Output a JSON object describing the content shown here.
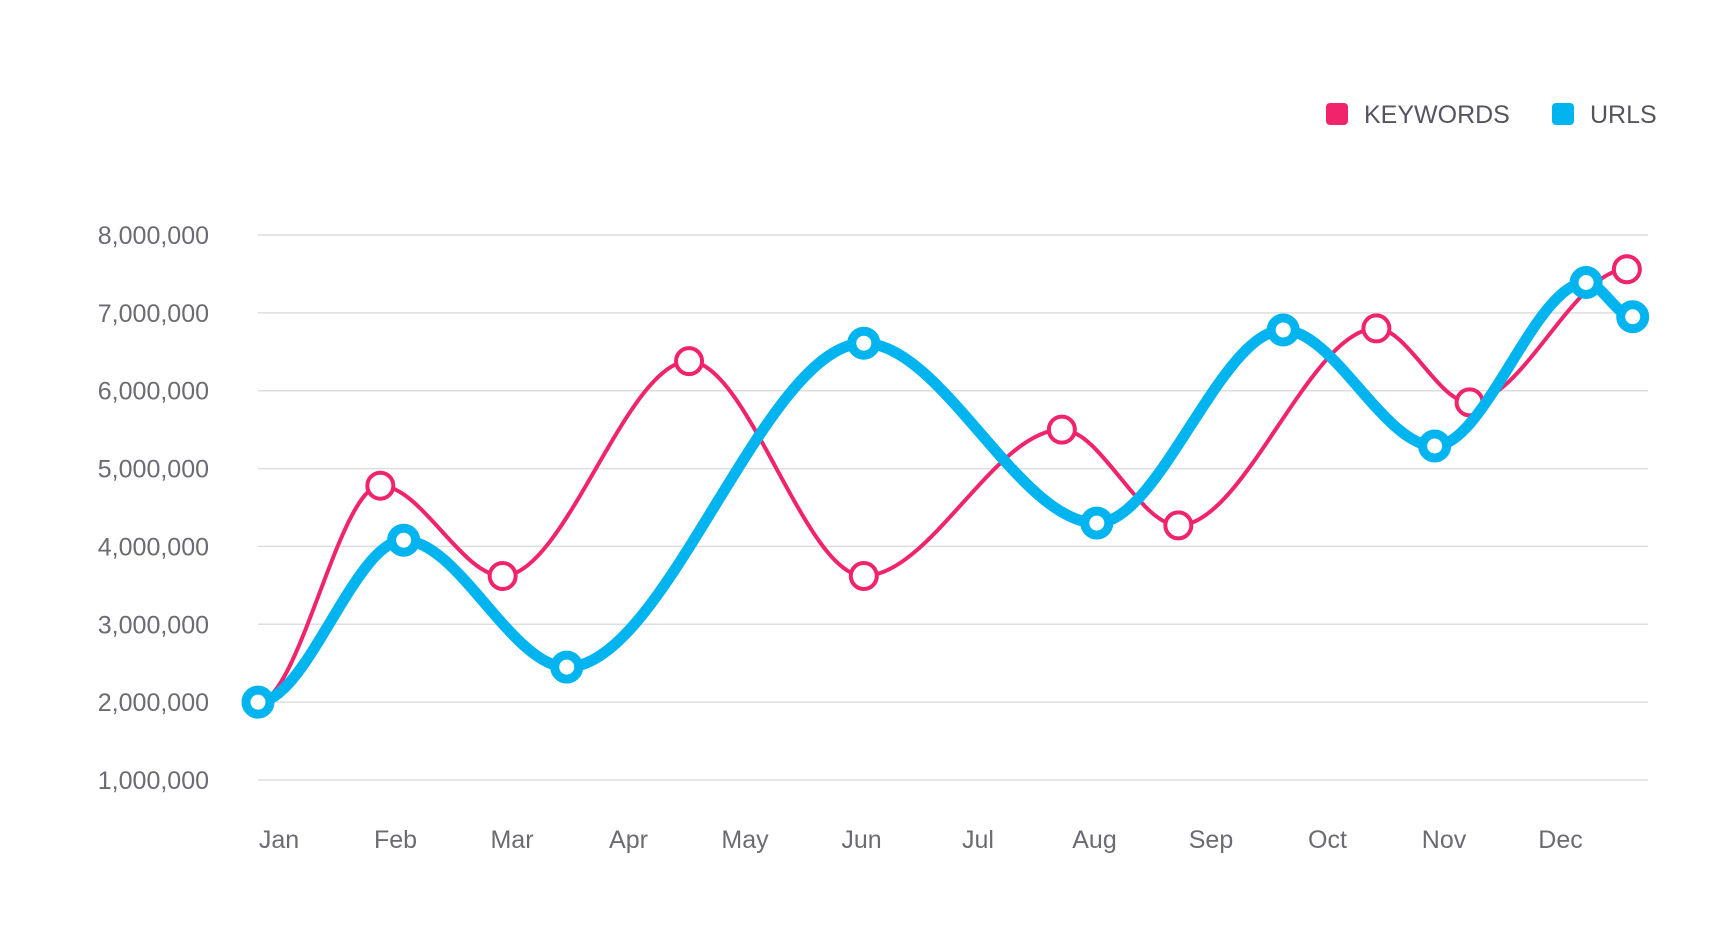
{
  "chart_data": {
    "type": "line",
    "categories": [
      "Jan",
      "Feb",
      "Mar",
      "Apr",
      "May",
      "Jun",
      "Jul",
      "Aug",
      "Sep",
      "Oct",
      "Nov",
      "Dec"
    ],
    "y_ticks": [
      "1,000,000",
      "2,000,000",
      "3,000,000",
      "4,000,000",
      "5,000,000",
      "6,000,000",
      "7,000,000",
      "8,000,000"
    ],
    "ylim": [
      1000000,
      8000000
    ],
    "grid": true,
    "legend_position": "top-right",
    "series": [
      {
        "name": "KEYWORDS",
        "color": "#f0236b",
        "marker": "hollow-circle",
        "x": [
          0,
          1.05,
          2.1,
          3.7,
          5.2,
          6.9,
          7.9,
          9.6,
          10.4,
          11.75
        ],
        "values": [
          2000000,
          4780000,
          3620000,
          6380000,
          3620000,
          5500000,
          4270000,
          6800000,
          5850000,
          7560000
        ]
      },
      {
        "name": "URLS",
        "color": "#00b4f0",
        "marker": "ring",
        "x": [
          0,
          1.25,
          2.65,
          5.2,
          7.2,
          8.8,
          10.1,
          11.4,
          11.8
        ],
        "values": [
          2000000,
          4080000,
          2450000,
          6610000,
          4300000,
          6780000,
          5290000,
          7390000,
          6950000
        ]
      }
    ]
  }
}
